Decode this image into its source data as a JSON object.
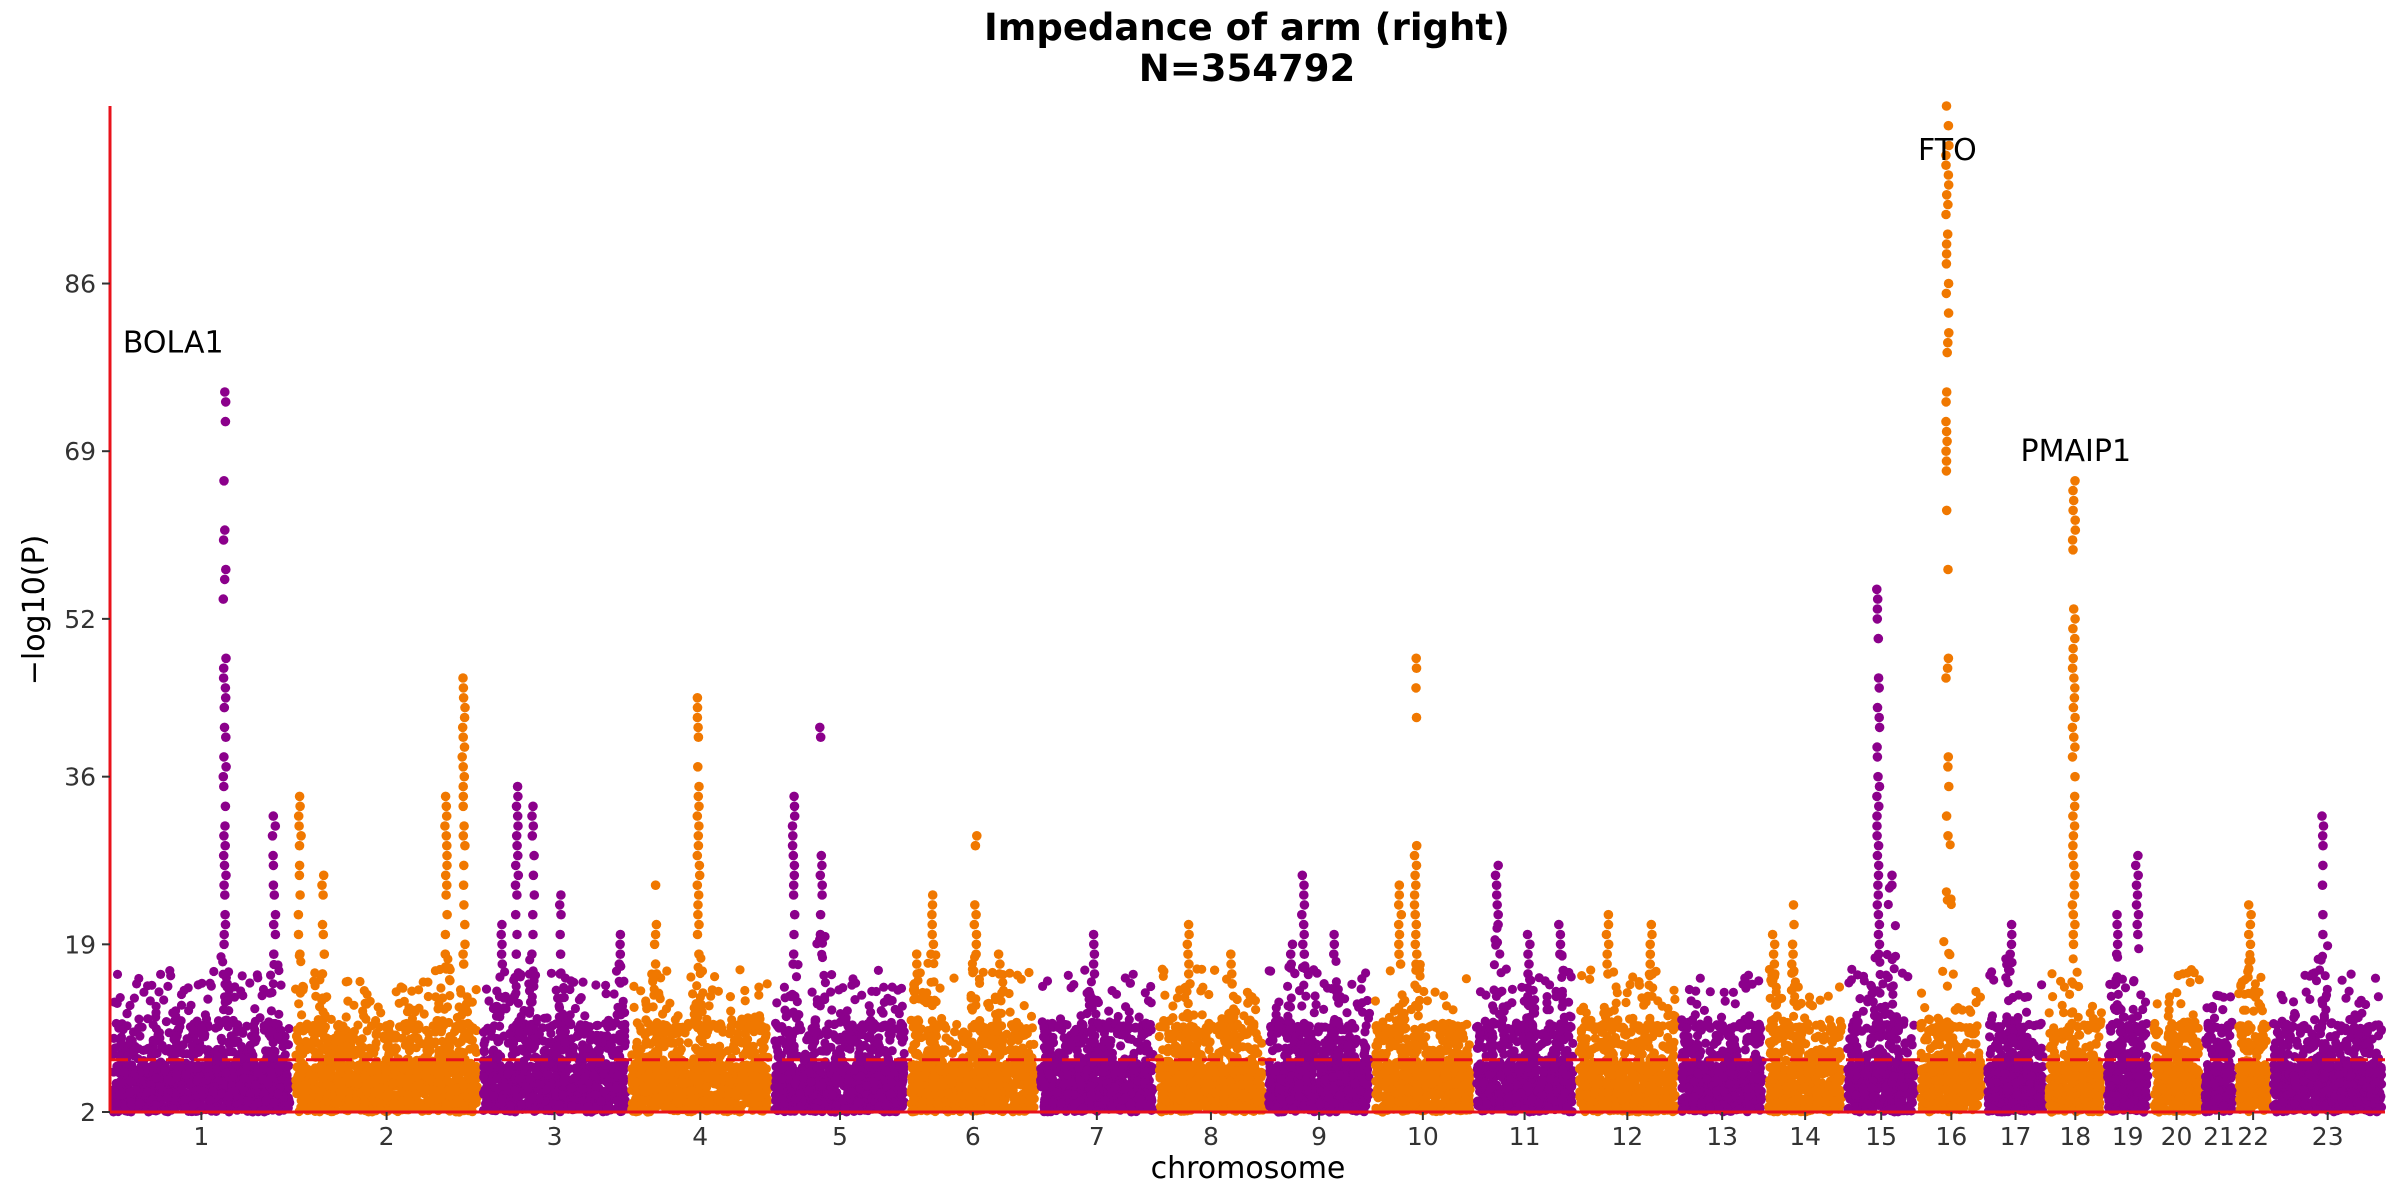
{
  "chart_data": {
    "type": "scatter",
    "subtype": "manhattan",
    "title": "Impedance of arm (right)",
    "subtitle": "N=354792",
    "xlabel": "chromosome",
    "ylabel": "−log10(P)",
    "ylim": [
      2,
      104
    ],
    "yticks": [
      2,
      19,
      36,
      52,
      69,
      86
    ],
    "threshold": 7.3,
    "threshold_color": "#e8121b",
    "axis_color": "#e8121b",
    "colors": [
      "#8b008b",
      "#f07800"
    ],
    "chromosomes": [
      {
        "label": "1",
        "start": 0.0,
        "width": 9.25,
        "color": 0
      },
      {
        "label": "2",
        "start": 9.25,
        "width": 9.5,
        "color": 1
      },
      {
        "label": "3",
        "start": 18.75,
        "width": 7.5,
        "color": 0
      },
      {
        "label": "4",
        "start": 26.25,
        "width": 7.25,
        "color": 1
      },
      {
        "label": "5",
        "start": 33.5,
        "width": 6.9,
        "color": 0
      },
      {
        "label": "6",
        "start": 40.4,
        "width": 6.55,
        "color": 1
      },
      {
        "label": "7",
        "start": 46.95,
        "width": 6.0,
        "color": 0
      },
      {
        "label": "8",
        "start": 52.95,
        "width": 5.55,
        "color": 1
      },
      {
        "label": "9",
        "start": 58.5,
        "width": 5.4,
        "color": 0
      },
      {
        "label": "10",
        "start": 63.9,
        "width": 5.1,
        "color": 1
      },
      {
        "label": "11",
        "start": 69.0,
        "width": 5.2,
        "color": 0
      },
      {
        "label": "12",
        "start": 74.2,
        "width": 5.2,
        "color": 1
      },
      {
        "label": "13",
        "start": 79.4,
        "width": 4.4,
        "color": 0
      },
      {
        "label": "14",
        "start": 83.8,
        "width": 4.0,
        "color": 1
      },
      {
        "label": "15",
        "start": 87.8,
        "width": 3.7,
        "color": 0
      },
      {
        "label": "16",
        "start": 91.5,
        "width": 3.4,
        "color": 1
      },
      {
        "label": "17",
        "start": 94.9,
        "width": 3.1,
        "color": 0
      },
      {
        "label": "18",
        "start": 98.0,
        "width": 2.95,
        "color": 1
      },
      {
        "label": "19",
        "start": 100.95,
        "width": 2.35,
        "color": 0
      },
      {
        "label": "20",
        "start": 103.3,
        "width": 2.6,
        "color": 1
      },
      {
        "label": "21",
        "start": 105.9,
        "width": 1.7,
        "color": 0
      },
      {
        "label": "22",
        "start": 107.6,
        "width": 1.75,
        "color": 1
      },
      {
        "label": "23",
        "start": 109.35,
        "width": 5.8,
        "color": 0
      }
    ],
    "peaks": [
      {
        "x": 5.8,
        "ys": [
          75,
          74,
          72,
          66,
          61,
          60,
          57,
          56,
          54,
          48,
          47,
          46,
          45,
          44,
          43,
          41,
          40,
          38,
          37,
          36,
          35,
          33,
          31,
          30,
          29,
          28,
          27,
          26,
          25,
          24,
          22,
          21,
          20,
          19
        ]
      },
      {
        "x": 8.3,
        "ys": [
          32,
          31,
          30,
          28,
          27,
          25,
          24,
          22,
          21,
          20,
          18
        ]
      },
      {
        "x": 9.6,
        "ys": [
          34,
          33,
          32,
          31,
          30,
          29,
          27,
          26,
          24,
          22,
          20,
          18
        ]
      },
      {
        "x": 10.8,
        "ys": [
          26,
          25,
          24,
          21,
          20,
          18,
          16
        ]
      },
      {
        "x": 17.9,
        "ys": [
          46,
          45,
          44,
          43,
          42,
          41,
          40,
          39,
          38,
          37,
          36,
          35,
          34,
          33,
          31,
          30,
          29,
          27,
          25,
          23,
          21,
          19,
          18,
          17
        ]
      },
      {
        "x": 17.0,
        "ys": [
          34,
          33,
          32,
          31,
          30,
          29,
          28,
          27,
          26,
          25,
          24,
          22,
          20,
          18
        ]
      },
      {
        "x": 19.8,
        "ys": [
          21,
          20,
          19,
          18,
          17
        ]
      },
      {
        "x": 20.6,
        "ys": [
          35,
          34,
          33,
          32,
          31,
          30,
          29,
          28,
          27,
          26,
          25,
          24,
          22,
          20,
          18
        ]
      },
      {
        "x": 21.4,
        "ys": [
          33,
          32,
          31,
          30,
          28,
          26,
          24,
          22,
          20,
          18
        ]
      },
      {
        "x": 22.8,
        "ys": [
          24,
          23,
          22,
          20,
          18,
          16
        ]
      },
      {
        "x": 25.8,
        "ys": [
          20,
          19,
          18,
          17
        ]
      },
      {
        "x": 27.6,
        "ys": [
          25,
          21,
          20,
          19,
          17,
          16
        ]
      },
      {
        "x": 29.8,
        "ys": [
          44,
          43,
          42,
          41,
          40,
          37,
          35,
          34,
          33,
          32,
          31,
          30,
          29,
          28,
          27,
          26,
          25,
          24,
          23,
          22,
          21,
          20,
          18
        ]
      },
      {
        "x": 34.6,
        "ys": [
          34,
          33,
          32,
          31,
          30,
          29,
          28,
          27,
          26,
          25,
          24,
          22,
          20,
          18,
          17
        ]
      },
      {
        "x": 36.0,
        "ys": [
          41,
          40,
          28,
          27,
          26,
          25,
          24,
          22,
          20
        ]
      },
      {
        "x": 40.8,
        "ys": [
          18,
          17,
          16,
          15
        ]
      },
      {
        "x": 41.6,
        "ys": [
          24,
          23,
          22,
          21,
          20,
          19,
          18
        ]
      },
      {
        "x": 43.8,
        "ys": [
          30,
          29,
          23,
          22,
          21,
          20,
          19,
          18
        ]
      },
      {
        "x": 45.0,
        "ys": [
          18,
          17,
          16
        ]
      },
      {
        "x": 49.8,
        "ys": [
          20,
          19,
          18,
          17,
          16
        ]
      },
      {
        "x": 54.6,
        "ys": [
          21,
          20,
          19,
          18,
          17,
          16,
          15
        ]
      },
      {
        "x": 56.8,
        "ys": [
          18,
          17,
          16,
          15
        ]
      },
      {
        "x": 59.8,
        "ys": [
          19,
          18,
          17
        ]
      },
      {
        "x": 60.4,
        "ys": [
          26,
          25,
          24,
          23,
          22,
          21,
          20,
          19,
          18
        ]
      },
      {
        "x": 62.0,
        "ys": [
          20,
          19,
          18
        ]
      },
      {
        "x": 65.3,
        "ys": [
          25,
          24,
          23,
          22,
          21,
          20,
          19,
          18,
          17
        ]
      },
      {
        "x": 66.1,
        "ys": [
          48,
          47,
          45,
          42,
          29,
          28,
          27,
          26,
          25,
          24,
          23,
          22,
          21,
          20,
          19,
          18,
          17
        ]
      },
      {
        "x": 70.2,
        "ys": [
          27,
          26,
          25,
          24,
          23,
          22,
          21
        ]
      },
      {
        "x": 71.8,
        "ys": [
          20,
          19,
          18,
          17,
          16
        ]
      },
      {
        "x": 73.4,
        "ys": [
          21,
          20,
          19,
          18
        ]
      },
      {
        "x": 75.8,
        "ys": [
          22,
          21,
          20,
          19,
          18,
          17,
          16
        ]
      },
      {
        "x": 78.0,
        "ys": [
          21,
          20,
          19,
          18,
          17,
          16
        ]
      },
      {
        "x": 84.2,
        "ys": [
          20,
          19,
          18,
          17,
          16
        ]
      },
      {
        "x": 85.2,
        "ys": [
          23,
          21,
          19,
          18,
          17
        ]
      },
      {
        "x": 89.5,
        "ys": [
          55,
          54,
          53,
          52,
          50,
          46,
          45,
          43,
          42,
          41,
          39,
          38,
          36,
          35,
          34,
          33,
          32,
          31,
          30,
          29,
          28,
          27,
          26,
          25,
          24,
          23,
          22,
          21,
          20,
          19,
          18
        ]
      },
      {
        "x": 90.2,
        "ys": [
          26,
          25
        ]
      },
      {
        "x": 93.0,
        "ys": [
          104,
          102,
          100,
          99,
          98,
          97,
          96,
          95,
          94,
          93,
          91,
          90,
          89,
          88,
          86,
          85,
          83,
          81,
          80,
          79,
          75,
          74,
          72,
          71,
          70,
          69,
          68,
          67,
          63,
          57,
          48,
          47,
          46,
          38,
          37,
          35,
          32,
          30
        ]
      },
      {
        "x": 96.2,
        "ys": [
          21,
          20,
          19,
          18
        ]
      },
      {
        "x": 99.4,
        "ys": [
          66,
          65,
          64,
          63,
          62,
          61,
          60,
          59,
          53,
          52,
          51,
          50,
          49,
          48,
          47,
          46,
          45,
          44,
          43,
          42,
          41,
          40,
          39,
          38,
          36,
          34,
          33,
          32,
          31,
          30,
          29,
          28,
          27,
          26,
          25,
          24,
          23,
          22,
          21,
          20,
          19
        ]
      },
      {
        "x": 101.6,
        "ys": [
          22,
          21,
          20,
          19,
          18
        ]
      },
      {
        "x": 102.6,
        "ys": [
          28,
          27,
          26,
          25,
          24,
          23,
          22,
          21,
          20
        ]
      },
      {
        "x": 108.3,
        "ys": [
          23,
          22,
          21,
          20,
          19
        ]
      },
      {
        "x": 112.0,
        "ys": [
          32,
          31,
          30,
          29,
          27,
          25,
          22,
          20
        ]
      }
    ],
    "annotations": [
      {
        "text": "BOLA1",
        "x": 3.2,
        "y": 79.0
      },
      {
        "text": "FTO",
        "x": 93.0,
        "y": 98.5
      },
      {
        "text": "PMAIP1",
        "x": 99.5,
        "y": 68.0
      }
    ]
  }
}
